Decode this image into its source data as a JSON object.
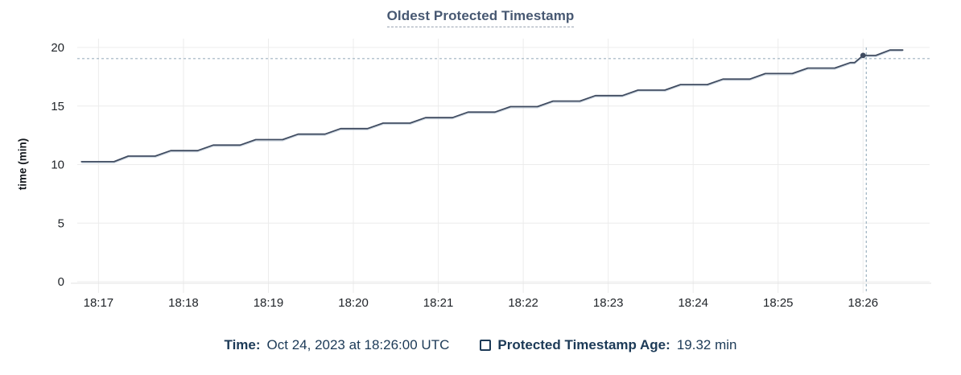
{
  "title": "Oldest Protected Timestamp",
  "y_axis_label": "time (min)",
  "tooltip": {
    "time_label": "Time:",
    "time_value": "Oct 24, 2023 at 18:26:00 UTC",
    "series_label": "Protected Timestamp Age:",
    "series_value": "19.32 min"
  },
  "colors": {
    "title": "#475872",
    "legend_text": "#1c3a57",
    "line": "#3f4b60",
    "line_shadow": "#bcc9d7",
    "grid": "#ececec",
    "axis": "#e3e3e3",
    "crosshair": "#9db2c0",
    "tick_label": "#1f2328"
  },
  "chart_data": {
    "type": "line",
    "title": "Oldest Protected Timestamp",
    "xlabel": "",
    "ylabel": "time (min)",
    "ylim": [
      0,
      20
    ],
    "y_ticks": [
      0,
      5,
      10,
      15,
      20
    ],
    "x_ticks": [
      "18:17",
      "18:18",
      "18:19",
      "18:20",
      "18:21",
      "18:22",
      "18:23",
      "18:24",
      "18:25",
      "18:26"
    ],
    "x_domain": [
      "18:16:45",
      "18:26:47"
    ],
    "grid": true,
    "legend_position": "bottom",
    "series": [
      {
        "name": "Protected Timestamp Age",
        "unit": "min",
        "points": [
          [
            "18:16:48",
            10.25
          ],
          [
            "18:17:11",
            10.25
          ],
          [
            "18:17:21",
            10.72
          ],
          [
            "18:17:40",
            10.72
          ],
          [
            "18:17:51",
            11.19
          ],
          [
            "18:18:10",
            11.19
          ],
          [
            "18:18:21",
            11.66
          ],
          [
            "18:18:40",
            11.66
          ],
          [
            "18:18:51",
            12.13
          ],
          [
            "18:19:10",
            12.13
          ],
          [
            "18:19:21",
            12.6
          ],
          [
            "18:19:40",
            12.6
          ],
          [
            "18:19:51",
            13.07
          ],
          [
            "18:20:10",
            13.07
          ],
          [
            "18:20:21",
            13.54
          ],
          [
            "18:20:40",
            13.54
          ],
          [
            "18:20:51",
            14.01
          ],
          [
            "18:21:10",
            14.01
          ],
          [
            "18:21:21",
            14.48
          ],
          [
            "18:21:40",
            14.48
          ],
          [
            "18:21:51",
            14.95
          ],
          [
            "18:22:10",
            14.95
          ],
          [
            "18:22:21",
            15.42
          ],
          [
            "18:22:40",
            15.42
          ],
          [
            "18:22:51",
            15.89
          ],
          [
            "18:23:10",
            15.89
          ],
          [
            "18:23:21",
            16.36
          ],
          [
            "18:23:40",
            16.36
          ],
          [
            "18:23:51",
            16.83
          ],
          [
            "18:24:10",
            16.83
          ],
          [
            "18:24:21",
            17.3
          ],
          [
            "18:24:40",
            17.3
          ],
          [
            "18:24:51",
            17.77
          ],
          [
            "18:25:10",
            17.77
          ],
          [
            "18:25:21",
            18.24
          ],
          [
            "18:25:40",
            18.24
          ],
          [
            "18:25:51",
            18.71
          ],
          [
            "18:25:54",
            18.71
          ],
          [
            "18:26:00",
            19.32
          ],
          [
            "18:26:09",
            19.32
          ],
          [
            "18:26:19",
            19.78
          ],
          [
            "18:26:28",
            19.78
          ]
        ]
      }
    ],
    "hover": {
      "x": "18:26:00",
      "y": 19.32,
      "crosshair_y": 19.05
    }
  }
}
